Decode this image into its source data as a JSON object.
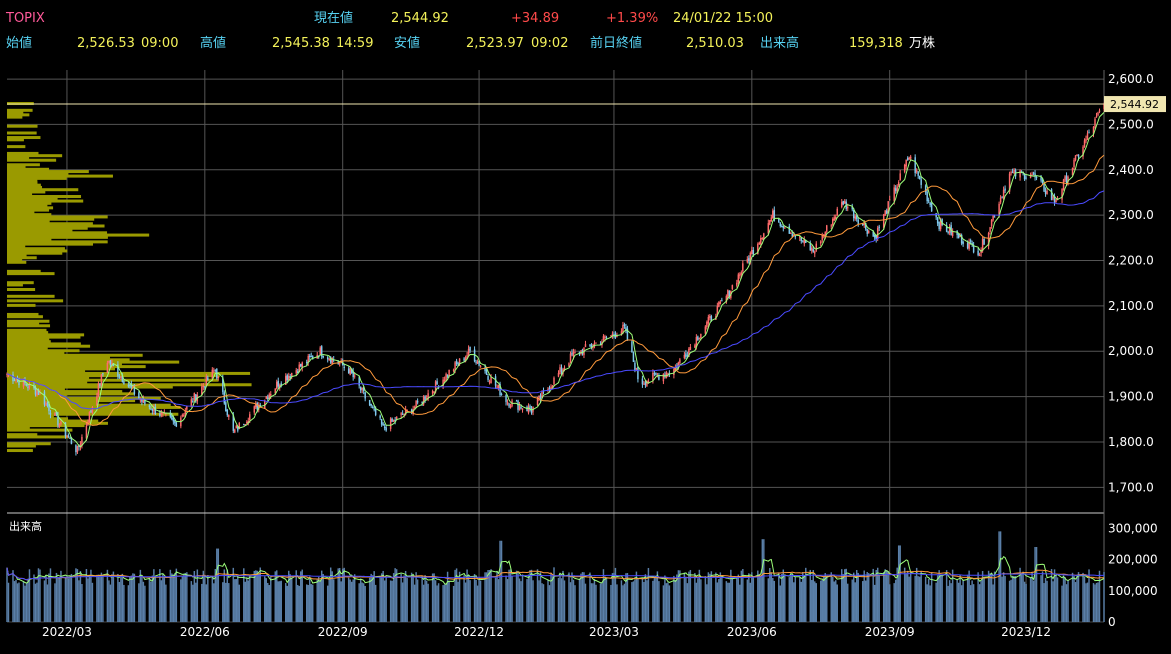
{
  "header": {
    "symbol": "TOPIX",
    "current_label": "現在値",
    "current_value": "2,544.92",
    "change": "+34.89",
    "change_pct": "+1.39%",
    "datetime": "24/01/22  15:00",
    "open_label": "始値",
    "open_value": "2,526.53",
    "open_time": "09:00",
    "high_label": "高値",
    "high_value": "2,545.38",
    "high_time": "14:59",
    "low_label": "安値",
    "low_value": "2,523.97",
    "low_time": "09:02",
    "prev_close_label": "前日終値",
    "prev_close_value": "2,510.03",
    "volume_label": "出来高",
    "volume_value": "159,318",
    "volume_unit": "万株"
  },
  "colors": {
    "up": "#ff6b6b",
    "down": "#7ec8ee",
    "ma_short": "#9dff7a",
    "ma_mid": "#ff9a3c",
    "ma_long": "#4a4aff",
    "volume_profile": "#9a9a00",
    "volume_bars": "#5a7fa8",
    "price_line": "#f0e6b0",
    "grid": "#555555"
  },
  "chart_data": {
    "type": "candlestick",
    "price_axis": {
      "ylim": [
        1650,
        2620
      ],
      "ticks": [
        "2,600.0",
        "2,500.0",
        "2,400.0",
        "2,300.0",
        "2,200.0",
        "2,100.0",
        "2,000.0",
        "1,900.0",
        "1,800.0",
        "1,700.0"
      ],
      "tick_values": [
        2600,
        2500,
        2400,
        2300,
        2200,
        2100,
        2000,
        1900,
        1800,
        1700
      ]
    },
    "current_price_label": "2,544.92",
    "current_price": 2544.92,
    "x_ticks": [
      "2022/03",
      "2022/06",
      "2022/09",
      "2022/12",
      "2023/03",
      "2023/06",
      "2023/09",
      "2023/12"
    ],
    "price_path": [
      [
        "2022/01/20",
        1950
      ],
      [
        "2022/02/10",
        1910
      ],
      [
        "2022/03/08",
        1780
      ],
      [
        "2022/03/28",
        1980
      ],
      [
        "2022/04/20",
        1890
      ],
      [
        "2022/05/12",
        1840
      ],
      [
        "2022/06/08",
        1960
      ],
      [
        "2022/06/20",
        1820
      ],
      [
        "2022/07/20",
        1930
      ],
      [
        "2022/08/17",
        2000
      ],
      [
        "2022/09/05",
        1960
      ],
      [
        "2022/09/28",
        1830
      ],
      [
        "2022/10/20",
        1880
      ],
      [
        "2022/11/25",
        2000
      ],
      [
        "2022/12/20",
        1890
      ],
      [
        "2023/01/05",
        1870
      ],
      [
        "2023/02/01",
        1990
      ],
      [
        "2023/03/08",
        2050
      ],
      [
        "2023/03/18",
        1930
      ],
      [
        "2023/04/10",
        1960
      ],
      [
        "2023/05/15",
        2120
      ],
      [
        "2023/06/15",
        2300
      ],
      [
        "2023/07/12",
        2220
      ],
      [
        "2023/08/01",
        2330
      ],
      [
        "2023/08/22",
        2250
      ],
      [
        "2023/09/14",
        2430
      ],
      [
        "2023/10/04",
        2280
      ],
      [
        "2023/10/31",
        2220
      ],
      [
        "2023/11/20",
        2390
      ],
      [
        "2023/12/05",
        2390
      ],
      [
        "2023/12/20",
        2330
      ],
      [
        "2024/01/22",
        2545
      ]
    ],
    "volume_axis": {
      "ylim": [
        0,
        320000
      ],
      "ticks": [
        "300,000",
        "200,000",
        "100,000",
        "0"
      ],
      "tick_values": [
        300000,
        200000,
        100000,
        0
      ],
      "label": "出来高"
    },
    "volume_spikes": [
      [
        "2022/06/10",
        235000
      ],
      [
        "2022/12/16",
        260000
      ],
      [
        "2023/06/09",
        265000
      ],
      [
        "2023/09/08",
        245000
      ],
      [
        "2023/12/08",
        240000
      ],
      [
        "2023/11/13",
        290000
      ]
    ],
    "volume_base": 145000
  }
}
